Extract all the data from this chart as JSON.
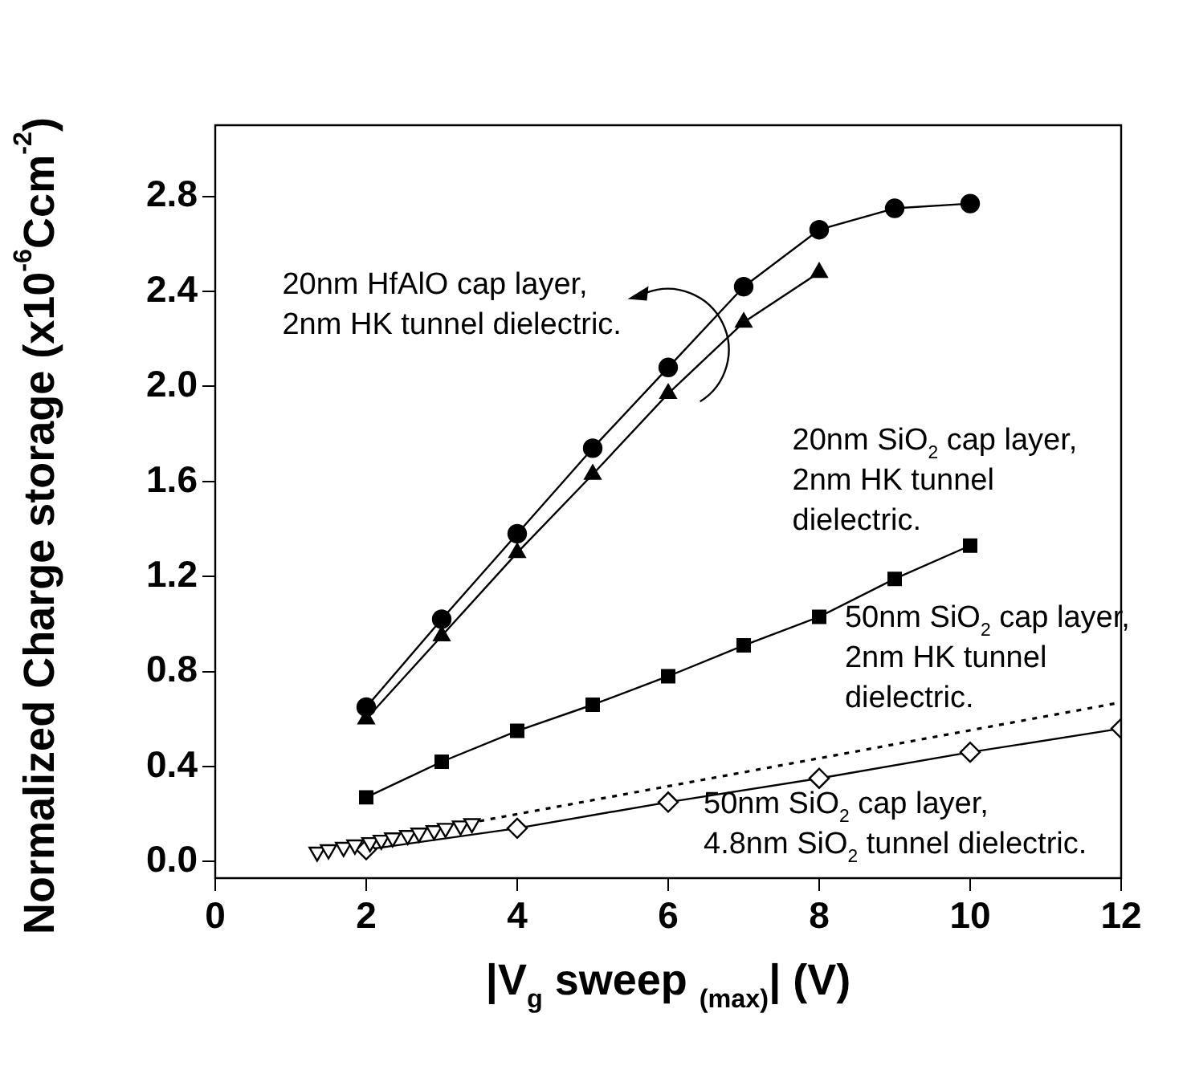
{
  "chart_data": {
    "type": "line",
    "xlabel": "|V$_{g}$ sweep $_{(max)}$| (V)",
    "ylabel": "Normalized Charge storage (x10$^{-6}$Ccm$^{-2}$)",
    "xlim": [
      0,
      12
    ],
    "xticks": [
      0,
      2,
      4,
      6,
      8,
      10,
      12
    ],
    "ylim": [
      -0.07,
      3.1
    ],
    "yticks": [
      {
        "value": 0,
        "label": "0.0"
      },
      0.4,
      0.8,
      1.2,
      1.6,
      {
        "value": 2,
        "label": "2.0"
      },
      2.4,
      2.8
    ],
    "grid": false,
    "legend": false,
    "series": [
      {
        "color": "#000000",
        "marker": "circle",
        "line_style": "solid",
        "x": [
          2,
          3,
          4,
          5,
          6,
          7,
          8,
          9,
          10
        ],
        "values": [
          0.65,
          1.02,
          1.38,
          1.74,
          2.08,
          2.42,
          2.66,
          2.75,
          2.77
        ]
      },
      {
        "color": "#000000",
        "marker": "triangle",
        "line_style": "solid",
        "x": [
          2,
          3,
          4,
          5,
          6,
          7,
          8
        ],
        "values": [
          0.6,
          0.95,
          1.3,
          1.63,
          1.97,
          2.27,
          2.48
        ]
      },
      {
        "color": "#000000",
        "marker": "square",
        "line_style": "solid",
        "x": [
          2,
          3,
          4,
          5,
          6,
          7,
          8,
          9,
          10
        ],
        "values": [
          0.27,
          0.42,
          0.55,
          0.66,
          0.78,
          0.91,
          1.03,
          1.19,
          1.33
        ]
      },
      {
        "color": "#000000",
        "marker": "diamond",
        "line_style": "solid",
        "x": [
          2,
          4,
          6,
          8,
          10,
          12
        ],
        "values": [
          0.05,
          0.14,
          0.25,
          0.35,
          0.46,
          0.56
        ]
      },
      {
        "type": "scatter",
        "color": "#000000",
        "marker": "triangle-down",
        "x": [
          1.35,
          1.5,
          1.7,
          1.85,
          2.05,
          2.2,
          2.35,
          2.55,
          2.7,
          2.9,
          3.05,
          3.25,
          3.4
        ],
        "values": [
          0.04,
          0.05,
          0.06,
          0.07,
          0.08,
          0.09,
          0.1,
          0.11,
          0.12,
          0.13,
          0.14,
          0.15,
          0.16
        ]
      },
      {
        "color": "#000000",
        "marker": "none",
        "line_style": "dotted",
        "x": [
          3.5,
          12
        ],
        "values": [
          0.17,
          0.67
        ]
      }
    ],
    "annotations": [
      "20nm HfAlO cap layer,\n2nm HK tunnel dielectric.",
      "20nm SiO$_{2}$ cap layer,\n2nm HK tunnel\ndielectric.",
      "50nm SiO$_{2}$ cap layer,\n2nm HK tunnel\ndielectric.",
      "50nm SiO$_{2}$ cap layer,\n4.8nm SiO$_{2}$ tunnel dielectric."
    ]
  }
}
